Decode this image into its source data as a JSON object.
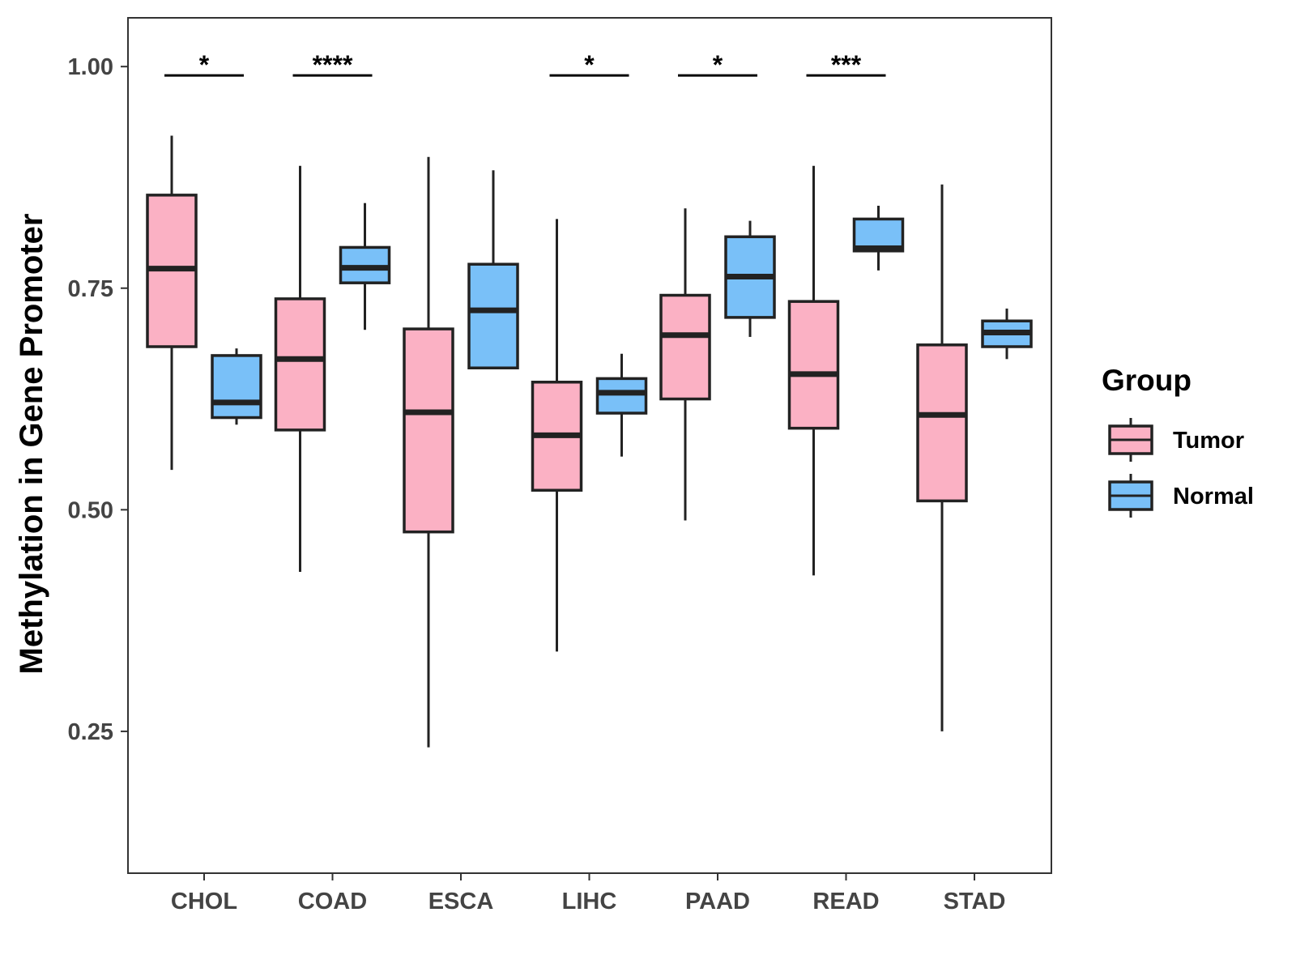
{
  "chart_data": {
    "type": "boxplot",
    "ylabel": "Methylation in Gene Promoter",
    "xlabel": "",
    "ylim": [
      0.09,
      1.055
    ],
    "yticks": [
      "0.25",
      "0.50",
      "0.75",
      "1.00"
    ],
    "categories": [
      "CHOL",
      "COAD",
      "ESCA",
      "LIHC",
      "PAAD",
      "READ",
      "STAD"
    ],
    "legend": {
      "title": "Group",
      "position": "right",
      "items": [
        {
          "name": "Tumor",
          "color": "#FBB1C4"
        },
        {
          "name": "Normal",
          "color": "#79C0F8"
        }
      ]
    },
    "series": [
      {
        "name": "Tumor",
        "color": "#FBB1C4",
        "boxes": [
          {
            "category": "CHOL",
            "min": 0.545,
            "q1": 0.684,
            "median": 0.772,
            "q3": 0.855,
            "max": 0.922
          },
          {
            "category": "COAD",
            "min": 0.43,
            "q1": 0.59,
            "median": 0.67,
            "q3": 0.738,
            "max": 0.888
          },
          {
            "category": "ESCA",
            "min": 0.232,
            "q1": 0.475,
            "median": 0.61,
            "q3": 0.704,
            "max": 0.898
          },
          {
            "category": "LIHC",
            "min": 0.34,
            "q1": 0.522,
            "median": 0.584,
            "q3": 0.644,
            "max": 0.828
          },
          {
            "category": "PAAD",
            "min": 0.488,
            "q1": 0.625,
            "median": 0.697,
            "q3": 0.742,
            "max": 0.84
          },
          {
            "category": "READ",
            "min": 0.426,
            "q1": 0.592,
            "median": 0.653,
            "q3": 0.735,
            "max": 0.888
          },
          {
            "category": "STAD",
            "min": 0.25,
            "q1": 0.51,
            "median": 0.607,
            "q3": 0.686,
            "max": 0.867
          }
        ]
      },
      {
        "name": "Normal",
        "color": "#79C0F8",
        "boxes": [
          {
            "category": "CHOL",
            "min": 0.596,
            "q1": 0.604,
            "median": 0.621,
            "q3": 0.674,
            "max": 0.682
          },
          {
            "category": "COAD",
            "min": 0.703,
            "q1": 0.756,
            "median": 0.773,
            "q3": 0.796,
            "max": 0.846
          },
          {
            "category": "ESCA",
            "min": 0.66,
            "q1": 0.66,
            "median": 0.725,
            "q3": 0.777,
            "max": 0.883
          },
          {
            "category": "LIHC",
            "min": 0.56,
            "q1": 0.609,
            "median": 0.632,
            "q3": 0.648,
            "max": 0.676
          },
          {
            "category": "PAAD",
            "min": 0.695,
            "q1": 0.717,
            "median": 0.763,
            "q3": 0.808,
            "max": 0.826
          },
          {
            "category": "READ",
            "min": 0.77,
            "q1": 0.792,
            "median": 0.795,
            "q3": 0.828,
            "max": 0.843
          },
          {
            "category": "STAD",
            "min": 0.67,
            "q1": 0.684,
            "median": 0.7,
            "q3": 0.713,
            "max": 0.727
          }
        ]
      }
    ],
    "significance": [
      {
        "category": "CHOL",
        "label": "*"
      },
      {
        "category": "COAD",
        "label": "****"
      },
      {
        "category": "LIHC",
        "label": "*"
      },
      {
        "category": "PAAD",
        "label": "*"
      },
      {
        "category": "READ",
        "label": "***"
      }
    ],
    "grid": false
  }
}
